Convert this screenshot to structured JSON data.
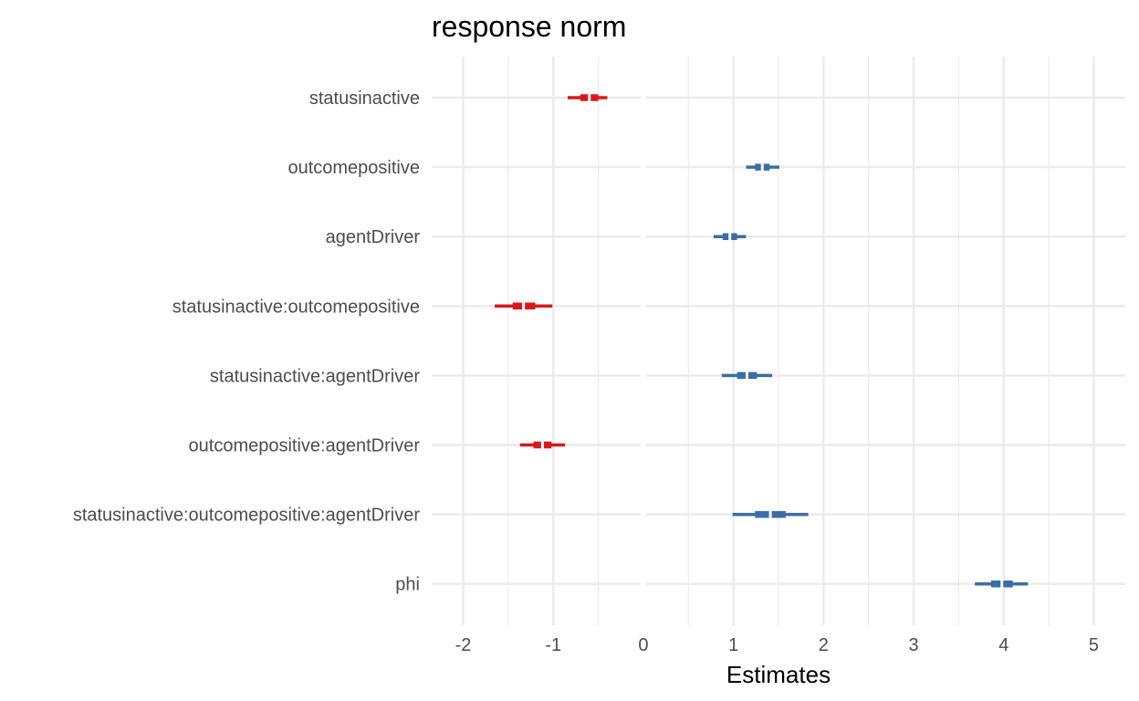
{
  "chart_data": {
    "type": "forest",
    "title": "response norm",
    "xlabel": "Estimates",
    "ylabel": "",
    "xlim": [
      -2.35,
      5.35
    ],
    "xticks": [
      -2,
      -1,
      0,
      1,
      2,
      3,
      4,
      5
    ],
    "xtick_labels": [
      "-2",
      "-1",
      "0",
      "1",
      "2",
      "3",
      "4",
      "5"
    ],
    "grid": true,
    "zero_line_hidden": true,
    "colors": {
      "negative": "#d7191c",
      "positive": "#3a6ea5"
    },
    "terms": [
      {
        "label": "statusinactive",
        "estimate": -0.6,
        "inner": [
          -0.7,
          -0.5
        ],
        "outer": [
          -0.84,
          -0.4
        ],
        "sign": "negative"
      },
      {
        "label": "outcomepositive",
        "estimate": 1.32,
        "inner": [
          1.24,
          1.4
        ],
        "outer": [
          1.14,
          1.51
        ],
        "sign": "positive"
      },
      {
        "label": "agentDriver",
        "estimate": 0.96,
        "inner": [
          0.88,
          1.04
        ],
        "outer": [
          0.78,
          1.14
        ],
        "sign": "positive"
      },
      {
        "label": "statusinactive:outcomepositive",
        "estimate": -1.33,
        "inner": [
          -1.45,
          -1.2
        ],
        "outer": [
          -1.65,
          -1.01
        ],
        "sign": "negative"
      },
      {
        "label": "statusinactive:agentDriver",
        "estimate": 1.15,
        "inner": [
          1.04,
          1.26
        ],
        "outer": [
          0.87,
          1.43
        ],
        "sign": "positive"
      },
      {
        "label": "outcomepositive:agentDriver",
        "estimate": -1.12,
        "inner": [
          -1.22,
          -1.02
        ],
        "outer": [
          -1.37,
          -0.87
        ],
        "sign": "negative"
      },
      {
        "label": "statusinactive:outcomepositive:agentDriver",
        "estimate": 1.41,
        "inner": [
          1.24,
          1.58
        ],
        "outer": [
          0.99,
          1.83
        ],
        "sign": "positive"
      },
      {
        "label": "phi",
        "estimate": 3.98,
        "inner": [
          3.86,
          4.1
        ],
        "outer": [
          3.68,
          4.27
        ],
        "sign": "positive"
      }
    ]
  }
}
